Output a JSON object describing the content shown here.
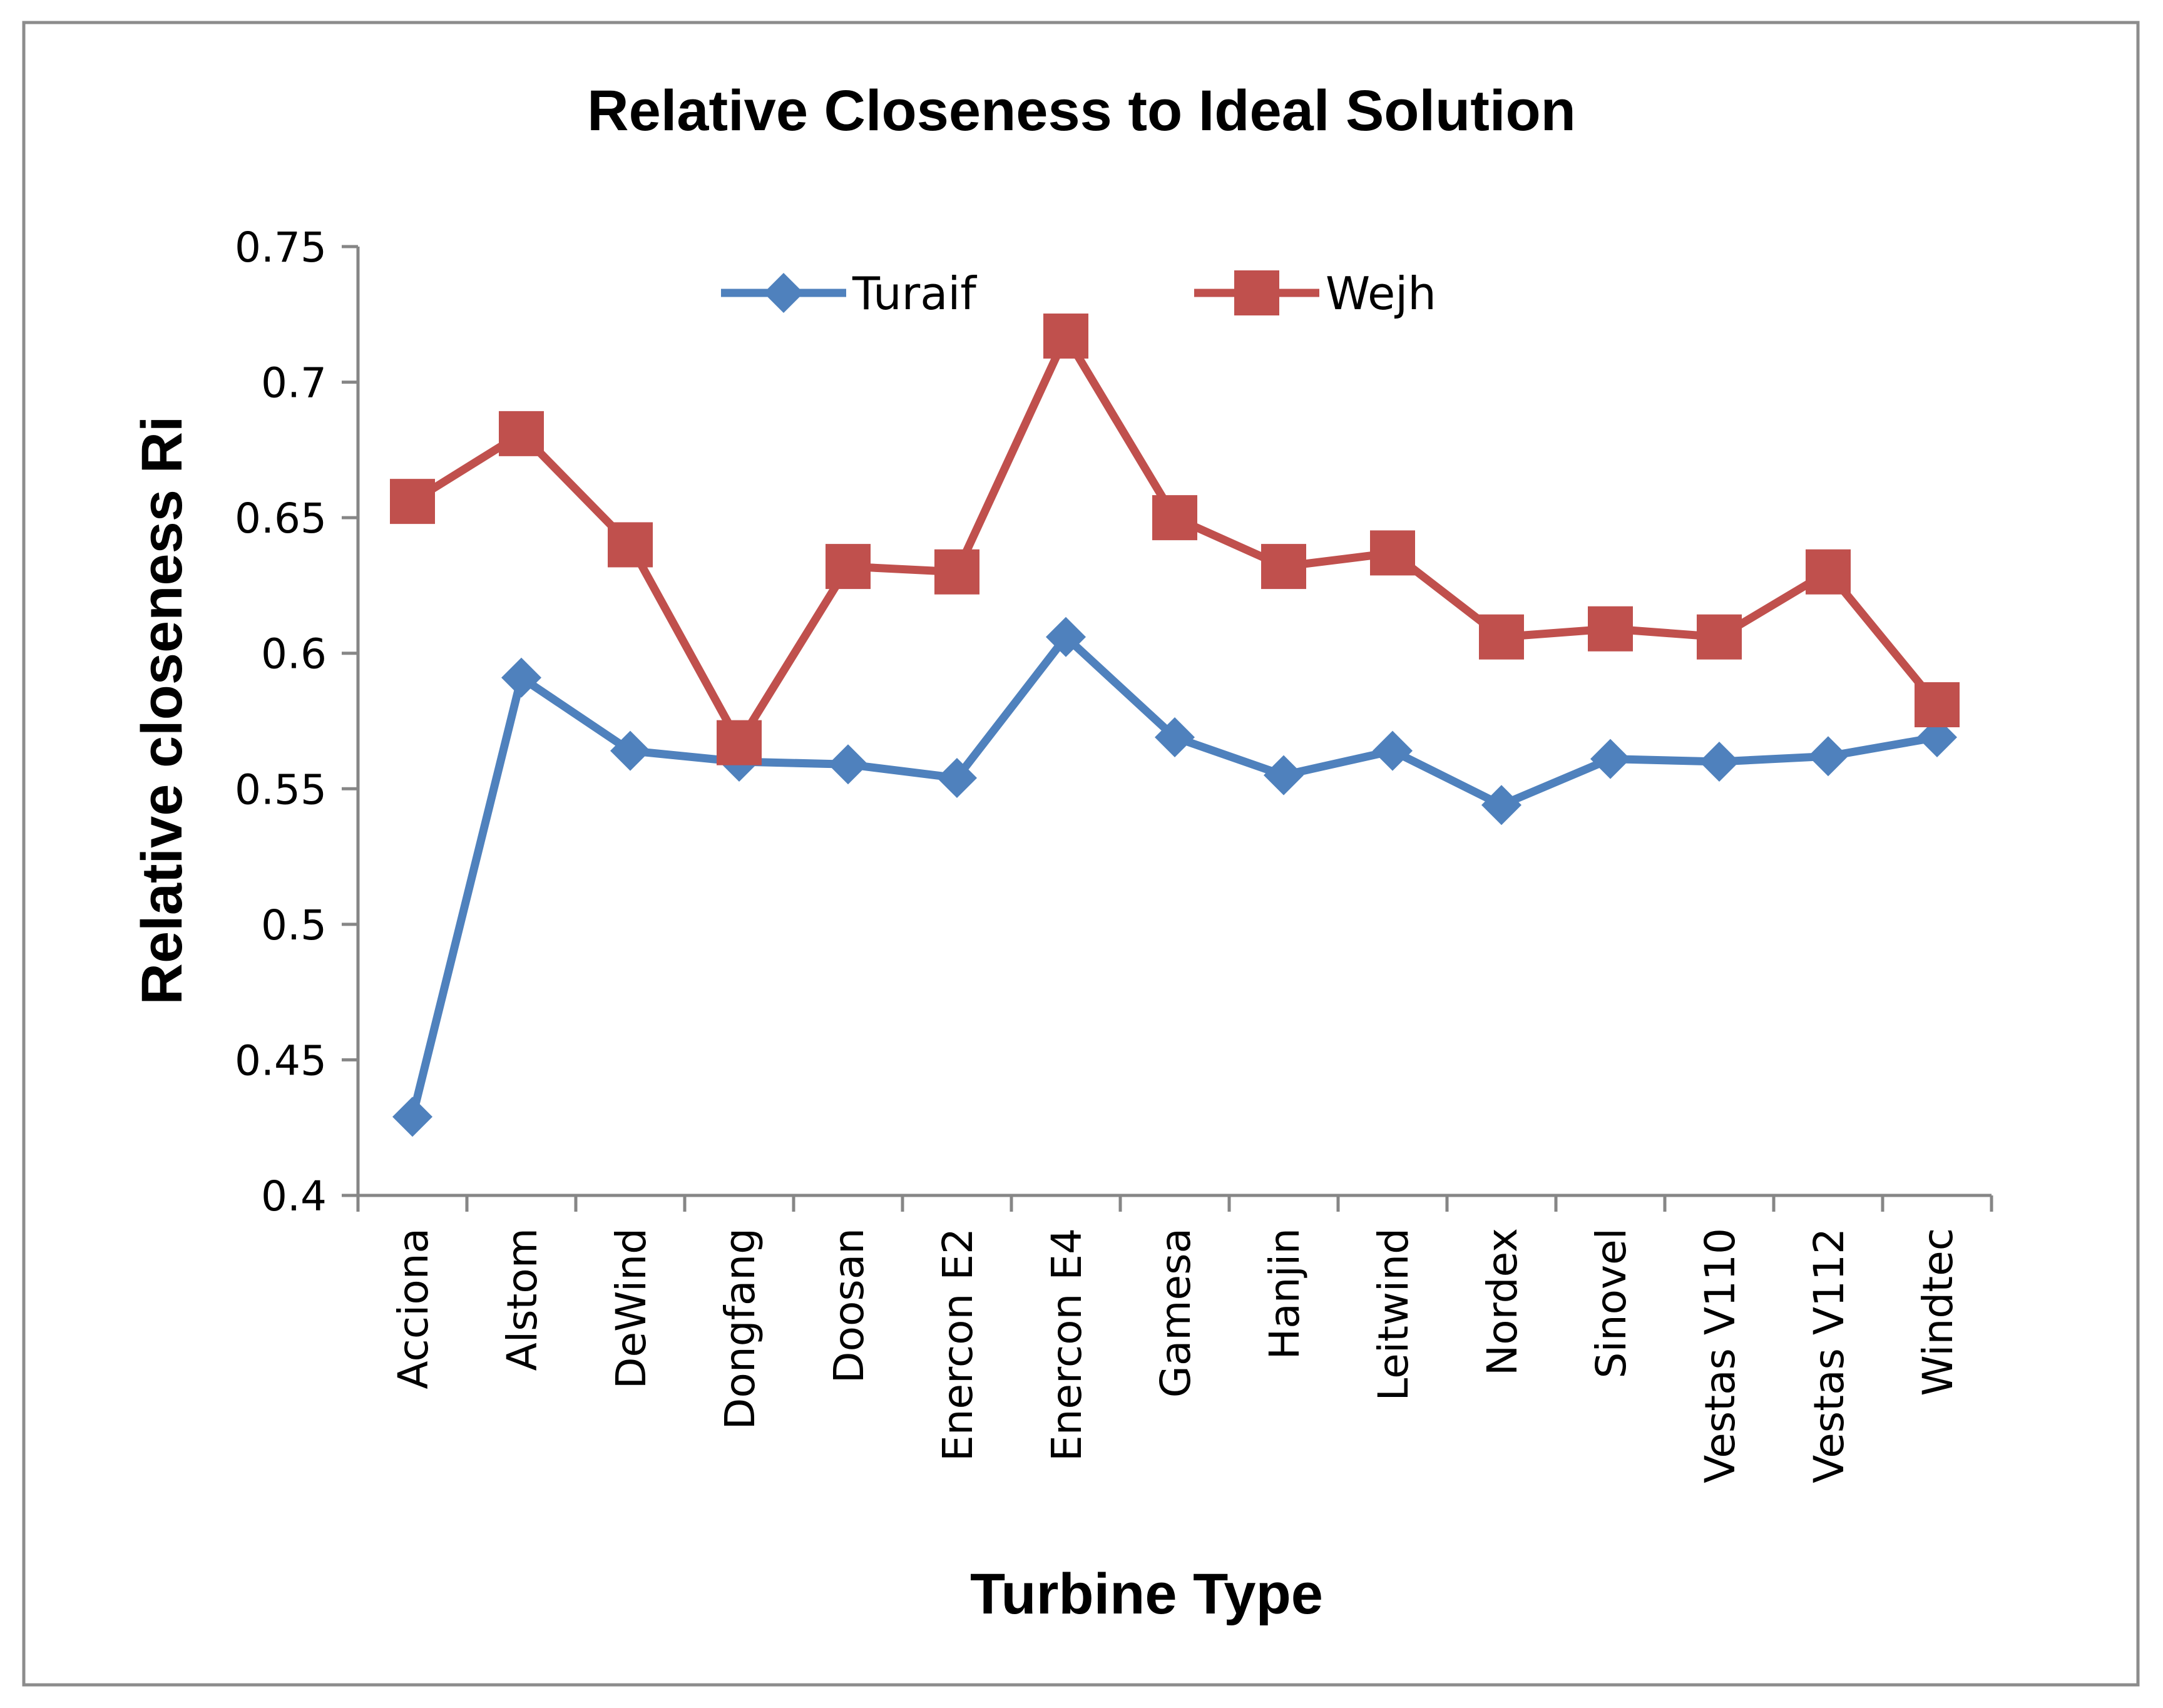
{
  "chart_data": {
    "type": "line",
    "title": "Relative Closeness to Ideal Solution",
    "xlabel": "Turbine Type",
    "ylabel": "Relative closeness Ri",
    "ylim": [
      0.4,
      0.75
    ],
    "yticks": [
      "0.4",
      "0.45",
      "0.5",
      "0.55",
      "0.6",
      "0.65",
      "0.7",
      "0.75"
    ],
    "grid": false,
    "legend_position": "top",
    "categories": [
      "Acciona",
      "Alstom",
      "DeWind",
      "Dongfang",
      "Doosan",
      "Enercon E2",
      "Enercon E4",
      "Gamesa",
      "Hanjin",
      "Leitwind",
      "Nordex",
      "Sinovel",
      "Vestas V110",
      "Vestas V112",
      "Windtec"
    ],
    "series": [
      {
        "name": "Turaif",
        "color": "#4f81bd",
        "marker": "diamond",
        "values": [
          0.429,
          0.591,
          0.564,
          0.56,
          0.559,
          0.554,
          0.606,
          0.569,
          0.555,
          0.564,
          0.544,
          0.561,
          0.56,
          0.562,
          0.569
        ]
      },
      {
        "name": "Wejh",
        "color": "#c0504d",
        "marker": "square",
        "values": [
          0.656,
          0.681,
          0.64,
          0.567,
          0.632,
          0.63,
          0.717,
          0.65,
          0.632,
          0.637,
          0.606,
          0.609,
          0.606,
          0.63,
          0.581
        ]
      }
    ]
  }
}
